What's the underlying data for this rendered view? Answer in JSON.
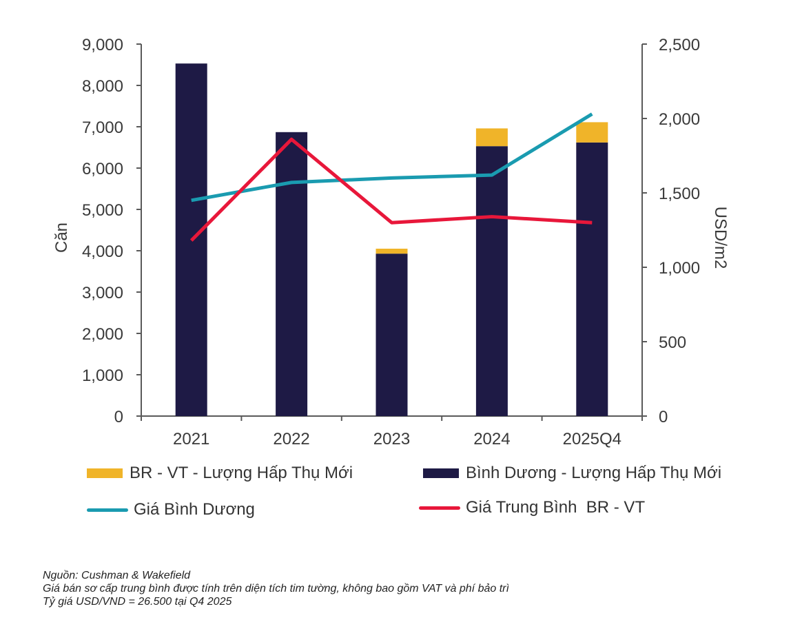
{
  "chart_data": {
    "type": "bar",
    "categories": [
      "2021",
      "2022",
      "2023",
      "2024",
      "2025Q4"
    ],
    "series": [
      {
        "name": "Bình Dương - Lượng Hấp Thụ Mới",
        "kind": "bar",
        "axis": "left",
        "color": "#1e1a45",
        "values": [
          8530,
          6870,
          3930,
          6530,
          6620
        ]
      },
      {
        "name": "BR - VT - Lượng Hấp Thụ Mới",
        "kind": "bar-stacked",
        "axis": "left",
        "color": "#f0b429",
        "values": [
          0,
          0,
          120,
          430,
          490
        ]
      },
      {
        "name": "Giá Bình Dương",
        "kind": "line",
        "axis": "right",
        "color": "#1a9bb0",
        "values": [
          1450,
          1570,
          1600,
          1620,
          2030
        ]
      },
      {
        "name": "Giá Trung Bình  BR - VT",
        "kind": "line",
        "axis": "right",
        "color": "#e8173a",
        "values": [
          1180,
          1860,
          1300,
          1340,
          1300
        ]
      }
    ],
    "ylabel": "Căn",
    "y2label": "USD/m2",
    "ylim": [
      0,
      9000
    ],
    "y2lim": [
      0,
      2500
    ],
    "yticks": [
      "0",
      "1,000",
      "2,000",
      "3,000",
      "4,000",
      "5,000",
      "6,000",
      "7,000",
      "8,000",
      "9,000"
    ],
    "y2ticks": [
      "0",
      "500",
      "1,000",
      "1,500",
      "2,000",
      "2,500"
    ],
    "grid": false,
    "legend_position": "bottom"
  },
  "legend": {
    "br_vt_absorption": "BR - VT - Lượng Hấp Thụ Mới",
    "bd_absorption": "Bình Dương - Lượng Hấp Thụ Mới",
    "bd_price": "Giá Bình Dương",
    "br_vt_price": "Giá Trung Bình  BR - VT"
  },
  "notes": {
    "source": "Nguồn: Cushman & Wakefield",
    "note1": "Giá bán sơ cấp trung bình được tính trên diện tích tim tường, không bao gồm VAT và phí bảo trì",
    "note2": "Tỷ giá USD/VND = 26.500 tại Q4 2025"
  }
}
